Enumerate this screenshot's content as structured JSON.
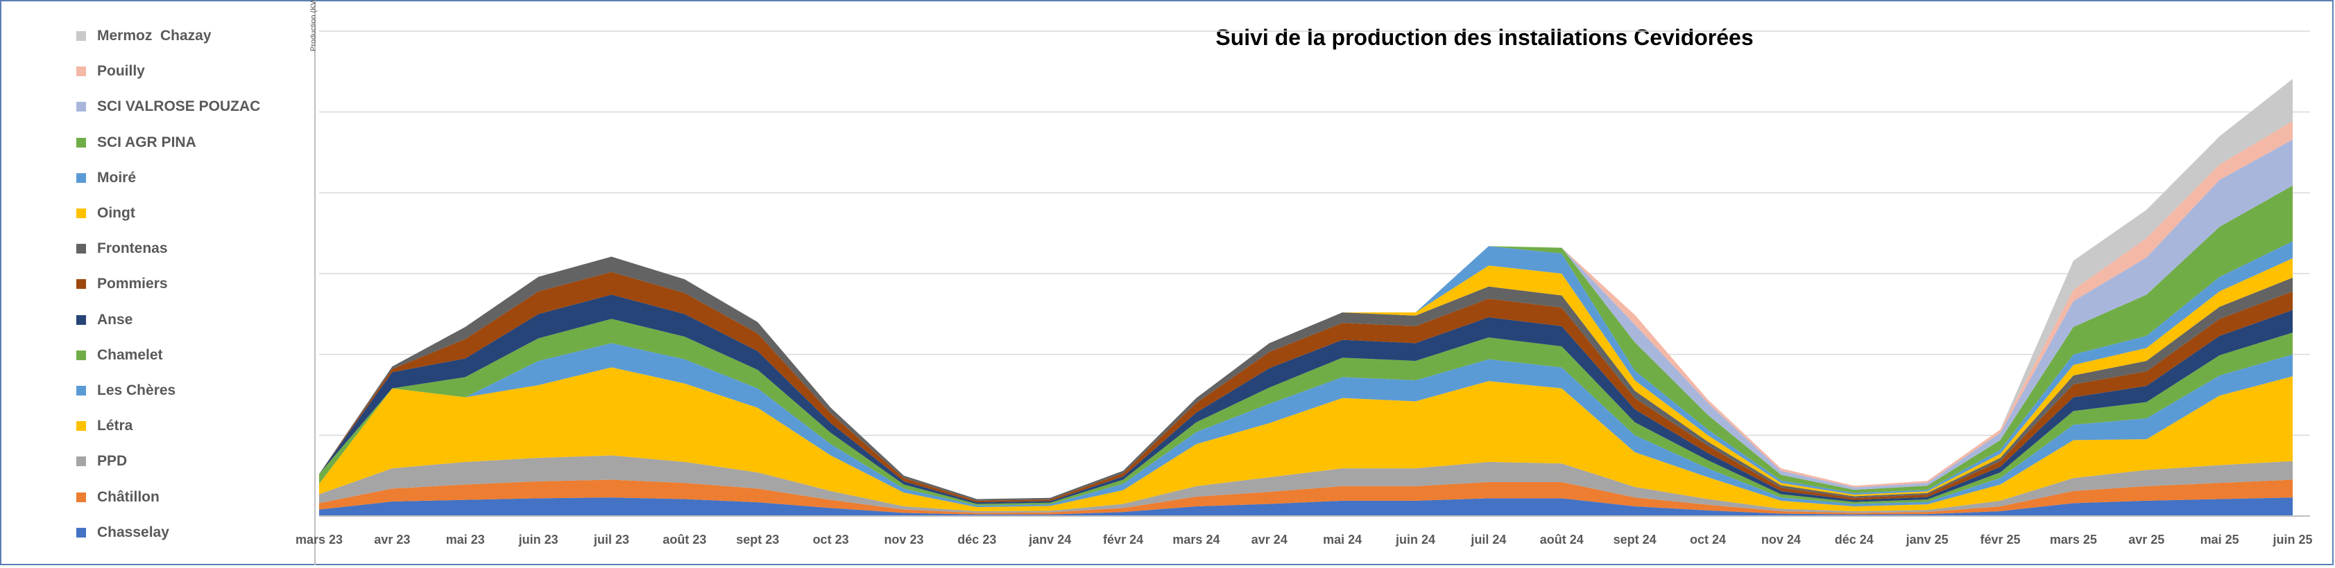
{
  "chart_data": {
    "type": "area",
    "stacked": true,
    "title": "Suivi de la production des installations Cevidorées",
    "ylabel": "Production (KWh)",
    "xlabel": "",
    "grid": true,
    "legend_position": "left",
    "categories": [
      "mars 23",
      "avr 23",
      "mai 23",
      "juin 23",
      "juil 23",
      "août 23",
      "sept 23",
      "oct 23",
      "nov 23",
      "déc 23",
      "janv 24",
      "févr 24",
      "mars 24",
      "avr 24",
      "mai 24",
      "juin 24",
      "juil 24",
      "août 24",
      "sept 24",
      "oct 24",
      "nov 24",
      "déc 24",
      "janv 25",
      "févr 25",
      "mars 25",
      "avr 25",
      "mai 25",
      "juin 25"
    ],
    "ylim": [
      0,
      60000
    ],
    "series": [
      {
        "name": "Chasselay",
        "color": "#4472c4",
        "values": [
          800,
          1800,
          2000,
          2200,
          2300,
          2100,
          1700,
          1000,
          400,
          200,
          200,
          500,
          1200,
          1500,
          1900,
          1900,
          2200,
          2200,
          1200,
          700,
          300,
          200,
          250,
          600,
          1600,
          1900,
          2100,
          2300
        ]
      },
      {
        "name": "Châtillon",
        "color": "#ed7d31",
        "values": [
          800,
          1600,
          1900,
          2100,
          2200,
          2000,
          1700,
          1000,
          400,
          200,
          250,
          500,
          1200,
          1500,
          1800,
          1800,
          2000,
          2000,
          1100,
          700,
          300,
          200,
          250,
          600,
          1500,
          1800,
          2000,
          2200
        ]
      },
      {
        "name": "PPD",
        "color": "#a5a5a5",
        "values": [
          1100,
          2500,
          2800,
          2900,
          3000,
          2600,
          2000,
          1100,
          400,
          200,
          200,
          500,
          1300,
          1800,
          2200,
          2200,
          2500,
          2300,
          1300,
          700,
          300,
          200,
          250,
          700,
          1600,
          2000,
          2200,
          2300
        ]
      },
      {
        "name": "Létra",
        "color": "#ffc000",
        "values": [
          1300,
          9900,
          8000,
          9000,
          10900,
          9700,
          8000,
          4400,
          1700,
          500,
          600,
          1700,
          5200,
          6700,
          8700,
          8300,
          10000,
          9300,
          4300,
          2700,
          1000,
          600,
          700,
          2000,
          4700,
          3800,
          8600,
          10500
        ]
      },
      {
        "name": "Les Chères",
        "color": "#5b9bd5",
        "values": [
          0,
          0,
          0,
          3000,
          3000,
          3000,
          2400,
          1400,
          500,
          200,
          200,
          800,
          1500,
          2400,
          2600,
          2600,
          2700,
          2600,
          2100,
          1100,
          400,
          300,
          300,
          800,
          1900,
          2600,
          2500,
          2700
        ]
      },
      {
        "name": "Chamelet",
        "color": "#70ad47",
        "values": [
          1200,
          0,
          2500,
          2800,
          3000,
          2800,
          2300,
          1400,
          500,
          200,
          200,
          500,
          1200,
          2000,
          2400,
          2400,
          2700,
          2600,
          1600,
          1000,
          400,
          250,
          300,
          700,
          1700,
          2000,
          2500,
          2700
        ]
      },
      {
        "name": "Anse",
        "color": "#264478",
        "values": [
          0,
          2000,
          2300,
          3000,
          3000,
          2800,
          2300,
          1200,
          400,
          200,
          200,
          400,
          1200,
          2400,
          2200,
          2200,
          2500,
          2500,
          1600,
          900,
          400,
          250,
          300,
          700,
          1700,
          2000,
          2400,
          2800
        ]
      },
      {
        "name": "Pommiers",
        "color": "#9e480e",
        "values": [
          0,
          400,
          2400,
          2800,
          2800,
          2600,
          2200,
          1200,
          400,
          200,
          200,
          400,
          1200,
          2000,
          2100,
          2100,
          2300,
          2300,
          1400,
          900,
          400,
          250,
          300,
          700,
          1600,
          1800,
          2100,
          2300
        ]
      },
      {
        "name": "Frontenas",
        "color": "#636363",
        "values": [
          0,
          300,
          1500,
          1800,
          1900,
          1700,
          1400,
          700,
          300,
          200,
          200,
          300,
          600,
          1100,
          1300,
          1300,
          1500,
          1500,
          900,
          500,
          300,
          200,
          200,
          400,
          1100,
          1300,
          1500,
          1700
        ]
      },
      {
        "name": "Oingt",
        "color": "#ffc000",
        "values": [
          0,
          0,
          0,
          0,
          0,
          0,
          0,
          0,
          0,
          0,
          0,
          0,
          0,
          0,
          0,
          400,
          2600,
          2700,
          1300,
          800,
          300,
          200,
          200,
          500,
          1300,
          1600,
          1900,
          2400
        ]
      },
      {
        "name": "Moiré",
        "color": "#5b9bd5",
        "values": [
          0,
          0,
          0,
          0,
          0,
          0,
          0,
          0,
          0,
          0,
          0,
          0,
          0,
          0,
          0,
          0,
          2400,
          2500,
          1200,
          700,
          300,
          200,
          200,
          500,
          1300,
          1500,
          1800,
          2100
        ]
      },
      {
        "name": "SCI AGR PINA",
        "color": "#70ad47",
        "values": [
          0,
          0,
          0,
          0,
          0,
          0,
          0,
          0,
          0,
          0,
          0,
          0,
          0,
          0,
          0,
          0,
          0,
          700,
          3500,
          1800,
          700,
          400,
          500,
          1200,
          3400,
          5100,
          6200,
          6900
        ]
      },
      {
        "name": "SCI VALROSE POUZAC",
        "color": "#a9b6dc",
        "values": [
          0,
          0,
          0,
          0,
          0,
          0,
          0,
          0,
          0,
          0,
          0,
          0,
          0,
          0,
          0,
          0,
          0,
          0,
          2200,
          1500,
          500,
          300,
          350,
          900,
          3200,
          4600,
          5800,
          5700
        ]
      },
      {
        "name": "Pouilly",
        "color": "#f4b8a6",
        "values": [
          0,
          0,
          0,
          0,
          0,
          0,
          0,
          0,
          0,
          0,
          0,
          0,
          0,
          0,
          0,
          0,
          0,
          0,
          1200,
          400,
          300,
          200,
          250,
          400,
          1400,
          2400,
          1900,
          2300
        ]
      },
      {
        "name": "Mermoz  Chazay",
        "color": "#c9c9c9",
        "values": [
          0,
          0,
          0,
          0,
          0,
          0,
          0,
          0,
          0,
          0,
          0,
          0,
          0,
          0,
          0,
          0,
          0,
          0,
          0,
          0,
          0,
          0,
          0,
          0,
          3600,
          3500,
          3500,
          5200
        ]
      }
    ]
  }
}
